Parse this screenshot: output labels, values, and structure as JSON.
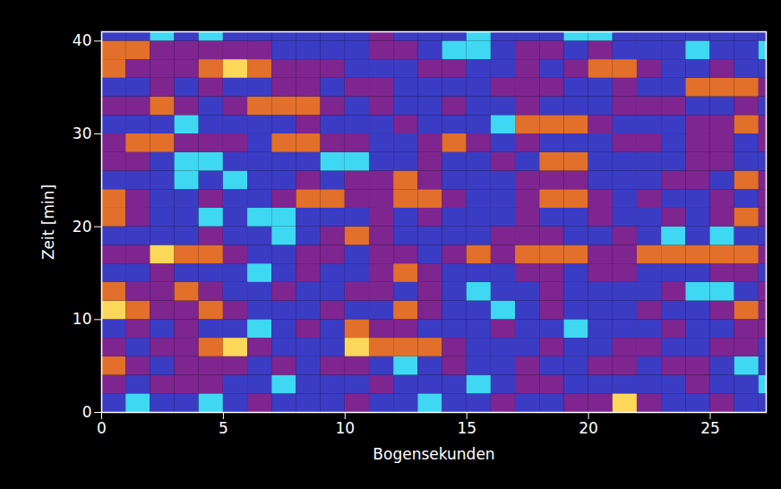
{
  "chart_data": {
    "type": "heatmap",
    "xlabel": "Bogensekunden",
    "ylabel": "Zeit [min]",
    "xlim": [
      0,
      27.3
    ],
    "xticks": [
      0,
      5,
      10,
      15,
      20,
      25
    ],
    "ylim": [
      0,
      41
    ],
    "yticks": [
      0,
      10,
      20,
      30,
      40
    ],
    "zlim": [
      0,
      4
    ],
    "x_edges": [
      0,
      1,
      2,
      3,
      4,
      5,
      6,
      7,
      8,
      9,
      10,
      11,
      12,
      13,
      14,
      15,
      16,
      17,
      18,
      19,
      20,
      21,
      22,
      23,
      24,
      25,
      26,
      27,
      27.3
    ],
    "y_edges": [
      0,
      2,
      4,
      6,
      8,
      10,
      12,
      14,
      16,
      18,
      20,
      22,
      24,
      26,
      28,
      30,
      32,
      34,
      36,
      38,
      40,
      41
    ],
    "cells": [
      [
        1,
        0,
        1,
        1,
        0,
        1,
        2,
        1,
        1,
        1,
        2,
        1,
        1,
        0,
        1,
        1,
        2,
        1,
        1,
        2,
        2,
        4,
        2,
        1,
        1,
        2,
        1,
        1
      ],
      [
        2,
        1,
        2,
        2,
        2,
        1,
        1,
        0,
        1,
        1,
        1,
        2,
        1,
        1,
        1,
        0,
        1,
        2,
        2,
        1,
        1,
        1,
        1,
        1,
        2,
        1,
        1,
        0
      ],
      [
        3,
        2,
        1,
        2,
        2,
        2,
        1,
        2,
        1,
        2,
        2,
        1,
        0,
        1,
        2,
        1,
        1,
        2,
        1,
        1,
        2,
        2,
        1,
        2,
        2,
        1,
        0,
        1
      ],
      [
        2,
        1,
        2,
        2,
        3,
        4,
        2,
        1,
        1,
        1,
        4,
        3,
        3,
        3,
        2,
        1,
        1,
        1,
        2,
        1,
        1,
        2,
        2,
        1,
        1,
        2,
        2,
        1
      ],
      [
        1,
        2,
        1,
        2,
        1,
        1,
        0,
        1,
        2,
        1,
        3,
        2,
        2,
        1,
        1,
        1,
        2,
        1,
        1,
        0,
        1,
        1,
        1,
        2,
        1,
        1,
        2,
        2
      ],
      [
        4,
        3,
        2,
        2,
        3,
        2,
        1,
        1,
        1,
        2,
        1,
        1,
        3,
        2,
        1,
        1,
        0,
        1,
        2,
        1,
        1,
        1,
        2,
        1,
        1,
        2,
        3,
        2
      ],
      [
        3,
        2,
        2,
        3,
        2,
        1,
        1,
        2,
        1,
        1,
        2,
        2,
        1,
        2,
        1,
        0,
        1,
        1,
        2,
        1,
        1,
        1,
        1,
        2,
        0,
        0,
        1,
        2
      ],
      [
        1,
        1,
        2,
        1,
        1,
        1,
        0,
        1,
        2,
        1,
        1,
        2,
        3,
        2,
        1,
        1,
        1,
        2,
        2,
        1,
        2,
        2,
        1,
        1,
        1,
        2,
        2,
        1
      ],
      [
        2,
        2,
        4,
        3,
        3,
        2,
        1,
        1,
        2,
        2,
        1,
        2,
        2,
        1,
        2,
        3,
        2,
        3,
        3,
        3,
        2,
        2,
        3,
        3,
        3,
        3,
        3,
        2
      ],
      [
        1,
        1,
        1,
        1,
        2,
        1,
        1,
        0,
        1,
        2,
        3,
        2,
        1,
        1,
        1,
        1,
        2,
        2,
        2,
        1,
        1,
        2,
        1,
        0,
        1,
        0,
        1,
        1
      ],
      [
        3,
        2,
        1,
        1,
        0,
        1,
        0,
        0,
        1,
        1,
        1,
        2,
        1,
        2,
        1,
        1,
        1,
        2,
        1,
        1,
        2,
        1,
        1,
        2,
        1,
        2,
        3,
        2
      ],
      [
        3,
        2,
        1,
        1,
        2,
        1,
        1,
        2,
        3,
        3,
        2,
        2,
        3,
        3,
        2,
        1,
        1,
        2,
        3,
        3,
        2,
        1,
        2,
        1,
        1,
        2,
        1,
        2
      ],
      [
        1,
        1,
        1,
        0,
        1,
        0,
        1,
        1,
        2,
        1,
        2,
        2,
        3,
        2,
        1,
        1,
        1,
        2,
        2,
        2,
        1,
        1,
        1,
        2,
        2,
        1,
        3,
        2
      ],
      [
        2,
        2,
        1,
        0,
        0,
        1,
        1,
        1,
        1,
        0,
        0,
        1,
        1,
        2,
        1,
        1,
        2,
        1,
        3,
        3,
        1,
        1,
        1,
        1,
        2,
        2,
        1,
        1
      ],
      [
        2,
        3,
        3,
        2,
        2,
        2,
        1,
        3,
        3,
        2,
        2,
        1,
        1,
        2,
        3,
        2,
        1,
        2,
        1,
        1,
        1,
        2,
        2,
        1,
        2,
        2,
        1,
        2
      ],
      [
        1,
        1,
        1,
        0,
        1,
        1,
        1,
        1,
        2,
        1,
        1,
        1,
        2,
        1,
        1,
        1,
        0,
        3,
        3,
        3,
        2,
        1,
        1,
        1,
        2,
        2,
        3,
        2
      ],
      [
        2,
        2,
        3,
        2,
        1,
        2,
        3,
        3,
        3,
        2,
        1,
        2,
        1,
        1,
        2,
        1,
        1,
        2,
        1,
        1,
        1,
        2,
        2,
        2,
        1,
        1,
        2,
        1
      ],
      [
        1,
        1,
        2,
        1,
        2,
        1,
        1,
        2,
        2,
        1,
        2,
        2,
        1,
        1,
        1,
        1,
        2,
        2,
        2,
        1,
        1,
        2,
        1,
        1,
        3,
        3,
        3,
        2
      ],
      [
        3,
        2,
        2,
        2,
        3,
        4,
        3,
        2,
        2,
        2,
        1,
        1,
        1,
        2,
        2,
        1,
        1,
        2,
        1,
        2,
        3,
        3,
        2,
        1,
        1,
        2,
        1,
        1
      ],
      [
        3,
        3,
        2,
        2,
        2,
        2,
        2,
        1,
        1,
        1,
        1,
        2,
        2,
        1,
        0,
        0,
        1,
        2,
        2,
        1,
        2,
        1,
        1,
        1,
        0,
        1,
        1,
        0
      ],
      [
        1,
        1,
        0,
        1,
        0,
        1,
        1,
        1,
        1,
        1,
        1,
        2,
        1,
        1,
        1,
        0,
        1,
        1,
        1,
        0,
        0,
        1,
        1,
        1,
        1,
        1,
        1,
        1
      ]
    ]
  }
}
